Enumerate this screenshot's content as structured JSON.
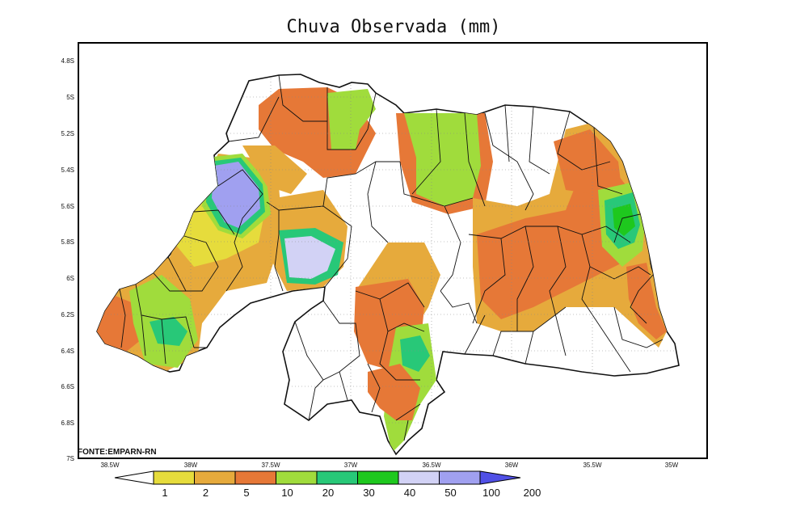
{
  "map": {
    "title": "Chuva Observada (mm)",
    "source": "FONTE:EMPARN-RN",
    "lat_labels": [
      "4.8S",
      "5S",
      "5.2S",
      "5.4S",
      "5.6S",
      "5.8S",
      "6S",
      "6.2S",
      "6.4S",
      "6.6S",
      "6.8S",
      "7S"
    ],
    "lon_labels": [
      "38.5W",
      "38W",
      "37.5W",
      "37W",
      "36.5W",
      "36W",
      "35.5W",
      "35W"
    ],
    "region": "Rio Grande do Norte"
  },
  "colorbar": {
    "labels": [
      "1",
      "2",
      "5",
      "10",
      "20",
      "30",
      "40",
      "50",
      "100",
      "200"
    ],
    "colors": [
      "#ffffff",
      "#e6dc3c",
      "#e6aa3c",
      "#e67837",
      "#a0dc3c",
      "#28c878",
      "#1ec81e",
      "#d2d2f5",
      "#a0a0f0",
      "#5050e6"
    ]
  }
}
